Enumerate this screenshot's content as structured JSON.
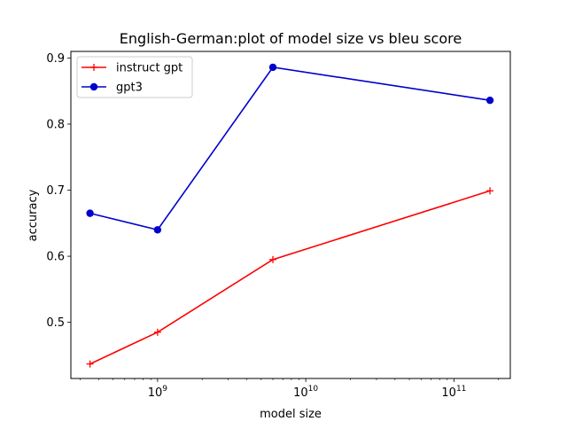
{
  "chart_data": {
    "type": "line",
    "title": "English-German:plot of model size vs bleu score",
    "xlabel": "model size",
    "ylabel": "accuracy",
    "xscale": "log",
    "xlim": [
      260000000.0,
      240000000000.0
    ],
    "ylim": [
      0.415,
      0.91
    ],
    "x_ticks": [
      {
        "value": 1000000000.0,
        "label": "10",
        "exp": "9"
      },
      {
        "value": 10000000000.0,
        "label": "10",
        "exp": "10"
      },
      {
        "value": 100000000000.0,
        "label": "10",
        "exp": "11"
      }
    ],
    "y_ticks": [
      "0.5",
      "0.6",
      "0.7",
      "0.8",
      "0.9"
    ],
    "x": [
      350000000.0,
      1000000000.0,
      6000000000.0,
      175000000000.0
    ],
    "series": [
      {
        "name": "instruct gpt",
        "color": "#ff0000",
        "marker": "plus",
        "values": [
          0.437,
          0.485,
          0.595,
          0.699
        ]
      },
      {
        "name": "gpt3",
        "color": "#0000cc",
        "marker": "circle",
        "values": [
          0.665,
          0.64,
          0.886,
          0.836
        ]
      }
    ],
    "legend": "top-left",
    "grid": false
  }
}
